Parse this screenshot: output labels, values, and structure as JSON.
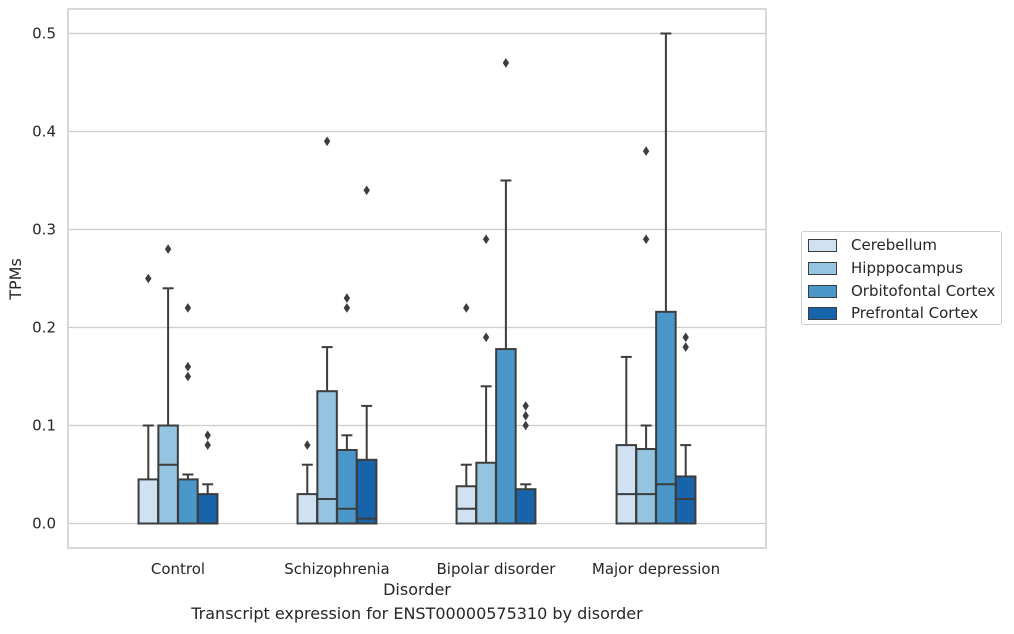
{
  "chart_data": {
    "type": "box",
    "title": "Transcript expression for ENST00000575310 by disorder",
    "xlabel": "Disorder",
    "ylabel": "TPMs",
    "ylim": [
      -0.025,
      0.525
    ],
    "yticks": [
      "0.0",
      "0.1",
      "0.2",
      "0.3",
      "0.4",
      "0.5"
    ],
    "grid": true,
    "legend_position": "right",
    "categories": [
      "Control",
      "Schizophrenia",
      "Bipolar disorder",
      "Major depression"
    ],
    "series": [
      {
        "name": "Cerebellum",
        "color": "#d0e1f2",
        "boxes": [
          {
            "whislo": 0.0,
            "q1": 0.0,
            "med": 0.0,
            "q3": 0.045,
            "whishi": 0.1,
            "fliers": [
              0.25
            ]
          },
          {
            "whislo": 0.0,
            "q1": 0.0,
            "med": 0.0,
            "q3": 0.03,
            "whishi": 0.06,
            "fliers": [
              0.08
            ]
          },
          {
            "whislo": 0.0,
            "q1": 0.0,
            "med": 0.015,
            "q3": 0.038,
            "whishi": 0.06,
            "fliers": [
              0.22
            ]
          },
          {
            "whislo": 0.0,
            "q1": 0.0,
            "med": 0.03,
            "q3": 0.08,
            "whishi": 0.17,
            "fliers": []
          }
        ]
      },
      {
        "name": "Hipppocampus",
        "color": "#94c4df",
        "boxes": [
          {
            "whislo": 0.0,
            "q1": 0.0,
            "med": 0.06,
            "q3": 0.1,
            "whishi": 0.24,
            "fliers": [
              0.28
            ]
          },
          {
            "whislo": 0.0,
            "q1": 0.0,
            "med": 0.025,
            "q3": 0.135,
            "whishi": 0.18,
            "fliers": [
              0.39
            ]
          },
          {
            "whislo": 0.0,
            "q1": 0.0,
            "med": 0.0,
            "q3": 0.062,
            "whishi": 0.14,
            "fliers": [
              0.19,
              0.29
            ]
          },
          {
            "whislo": 0.0,
            "q1": 0.0,
            "med": 0.03,
            "q3": 0.076,
            "whishi": 0.1,
            "fliers": [
              0.29,
              0.38
            ]
          }
        ]
      },
      {
        "name": "Orbitofontal Cortex",
        "color": "#4a98c9",
        "boxes": [
          {
            "whislo": 0.0,
            "q1": 0.0,
            "med": 0.0,
            "q3": 0.045,
            "whishi": 0.05,
            "fliers": [
              0.15,
              0.16,
              0.22
            ]
          },
          {
            "whislo": 0.0,
            "q1": 0.0,
            "med": 0.015,
            "q3": 0.075,
            "whishi": 0.09,
            "fliers": [
              0.22,
              0.23
            ]
          },
          {
            "whislo": 0.0,
            "q1": 0.0,
            "med": 0.0,
            "q3": 0.178,
            "whishi": 0.35,
            "fliers": [
              0.47
            ]
          },
          {
            "whislo": 0.0,
            "q1": 0.0,
            "med": 0.04,
            "q3": 0.216,
            "whishi": 0.5,
            "fliers": []
          }
        ]
      },
      {
        "name": "Prefrontal Cortex",
        "color": "#1764ab",
        "boxes": [
          {
            "whislo": 0.0,
            "q1": 0.0,
            "med": 0.0,
            "q3": 0.03,
            "whishi": 0.04,
            "fliers": [
              0.08,
              0.09
            ]
          },
          {
            "whislo": 0.0,
            "q1": 0.0,
            "med": 0.005,
            "q3": 0.065,
            "whishi": 0.12,
            "fliers": [
              0.34
            ]
          },
          {
            "whislo": 0.0,
            "q1": 0.0,
            "med": 0.0,
            "q3": 0.035,
            "whishi": 0.04,
            "fliers": [
              0.1,
              0.11,
              0.12
            ]
          },
          {
            "whislo": 0.0,
            "q1": 0.0,
            "med": 0.025,
            "q3": 0.048,
            "whishi": 0.08,
            "fliers": [
              0.18,
              0.19
            ]
          }
        ]
      }
    ]
  }
}
